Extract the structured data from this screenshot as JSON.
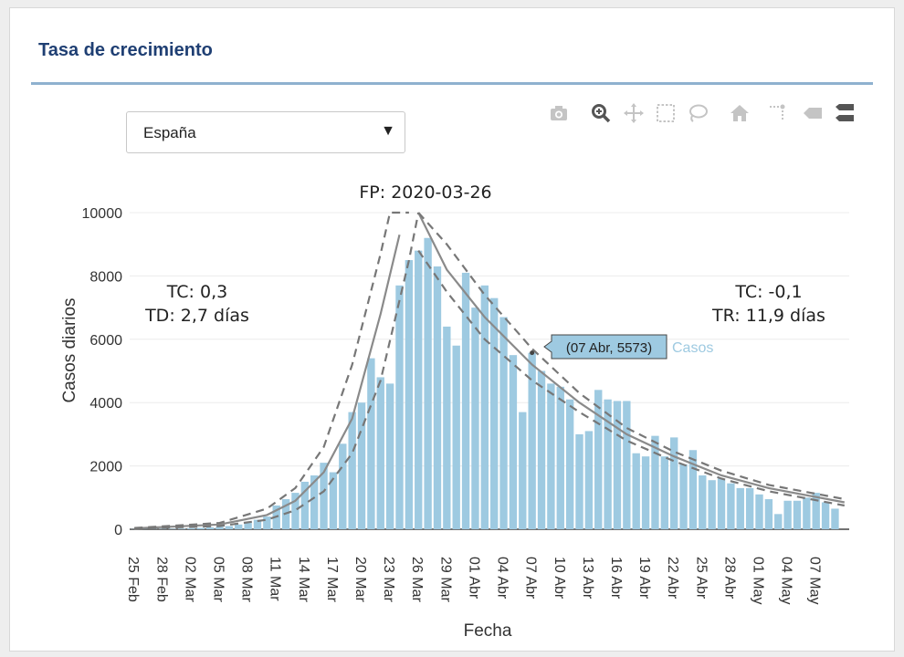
{
  "panel": {
    "title": "Tasa de crecimiento"
  },
  "selector": {
    "value": "España"
  },
  "modebar": [
    "camera-icon",
    "zoom-icon",
    "pan-icon",
    "box-select-icon",
    "lasso-select-icon",
    "home-icon",
    "spike-lines-icon",
    "hover-closest-icon",
    "hover-compare-icon"
  ],
  "annotations": {
    "peak": "FP: 2020-03-26",
    "left_tc": "TC: 0,3",
    "left_td": "TD: 2,7 días",
    "right_tc": "TC: -0,1",
    "right_tr": "TR: 11,9 días"
  },
  "tooltip": {
    "label": "(07 Abr, 5573)",
    "series": "Casos",
    "index": 42
  },
  "chart_data": {
    "type": "bar",
    "xlabel": "Fecha",
    "ylabel": "Casos diarios",
    "ylim": [
      0,
      10000
    ],
    "yticks": [
      0,
      2000,
      4000,
      6000,
      8000,
      10000
    ],
    "x_start": "2020-02-25",
    "x_end": "2020-05-10",
    "xtick_labels": [
      "25 Feb",
      "28 Feb",
      "02 Mar",
      "05 Mar",
      "08 Mar",
      "11 Mar",
      "14 Mar",
      "17 Mar",
      "20 Mar",
      "23 Mar",
      "26 Mar",
      "29 Mar",
      "01 Abr",
      "04 Abr",
      "07 Abr",
      "10 Abr",
      "13 Abr",
      "16 Abr",
      "19 Abr",
      "22 Abr",
      "25 Abr",
      "28 Abr",
      "01 May",
      "04 May",
      "07 May"
    ],
    "series": [
      {
        "name": "Casos",
        "color": "#9ecae1",
        "values": [
          5,
          5,
          8,
          10,
          15,
          20,
          35,
          45,
          60,
          80,
          100,
          150,
          200,
          300,
          400,
          750,
          950,
          1150,
          1500,
          1700,
          2100,
          1800,
          2700,
          3700,
          4000,
          5400,
          4800,
          4600,
          7700,
          8500,
          8800,
          9200,
          8300,
          6400,
          5800,
          8100,
          7000,
          7700,
          7300,
          6700,
          5500,
          3700,
          5573,
          5000,
          4600,
          4500,
          4100,
          3000,
          3100,
          4400,
          4100,
          4050,
          4050,
          2400,
          2300,
          2950,
          2300,
          2900,
          2050,
          2500,
          1700,
          1550,
          1600,
          1450,
          1300,
          1300,
          1100,
          950,
          480,
          900,
          900,
          1000,
          1150,
          850,
          650
        ]
      }
    ],
    "fit_lines": [
      {
        "name": "growth-fit",
        "style": "solid",
        "x": [
          "2020-02-25",
          "2020-03-05",
          "2020-03-10",
          "2020-03-13",
          "2020-03-16",
          "2020-03-19",
          "2020-03-22",
          "2020-03-24"
        ],
        "y": [
          30,
          150,
          450,
          900,
          1800,
          3500,
          6800,
          9300
        ]
      },
      {
        "name": "growth-upper",
        "style": "dashed",
        "x": [
          "2020-02-25",
          "2020-03-05",
          "2020-03-10",
          "2020-03-13",
          "2020-03-16",
          "2020-03-19",
          "2020-03-22",
          "2020-03-23",
          "2020-03-25"
        ],
        "y": [
          40,
          200,
          650,
          1300,
          2600,
          5200,
          8700,
          10000,
          10000
        ]
      },
      {
        "name": "growth-lower",
        "style": "dashed",
        "x": [
          "2020-02-25",
          "2020-03-05",
          "2020-03-10",
          "2020-03-13",
          "2020-03-16",
          "2020-03-19",
          "2020-03-22",
          "2020-03-25",
          "2020-03-26"
        ],
        "y": [
          20,
          100,
          300,
          600,
          1200,
          2400,
          4700,
          8500,
          10000
        ]
      },
      {
        "name": "decay-fit",
        "style": "solid",
        "x": [
          "2020-03-26",
          "2020-03-29",
          "2020-04-02",
          "2020-04-07",
          "2020-04-12",
          "2020-04-17",
          "2020-04-22",
          "2020-04-27",
          "2020-05-02",
          "2020-05-10"
        ],
        "y": [
          10000,
          8200,
          6700,
          5200,
          4000,
          3000,
          2300,
          1700,
          1300,
          850
        ]
      },
      {
        "name": "decay-upper",
        "style": "dashed",
        "x": [
          "2020-03-26",
          "2020-03-29",
          "2020-04-02",
          "2020-04-07",
          "2020-04-12",
          "2020-04-17",
          "2020-04-22",
          "2020-04-27",
          "2020-05-02",
          "2020-05-10"
        ],
        "y": [
          10000,
          9000,
          7400,
          5700,
          4300,
          3200,
          2450,
          1850,
          1400,
          950
        ]
      },
      {
        "name": "decay-lower",
        "style": "dashed",
        "x": [
          "2020-03-26",
          "2020-03-29",
          "2020-04-02",
          "2020-04-07",
          "2020-04-12",
          "2020-04-17",
          "2020-04-22",
          "2020-04-27",
          "2020-05-02",
          "2020-05-10"
        ],
        "y": [
          8800,
          7500,
          6000,
          4700,
          3700,
          2800,
          2150,
          1600,
          1200,
          750
        ]
      }
    ]
  }
}
